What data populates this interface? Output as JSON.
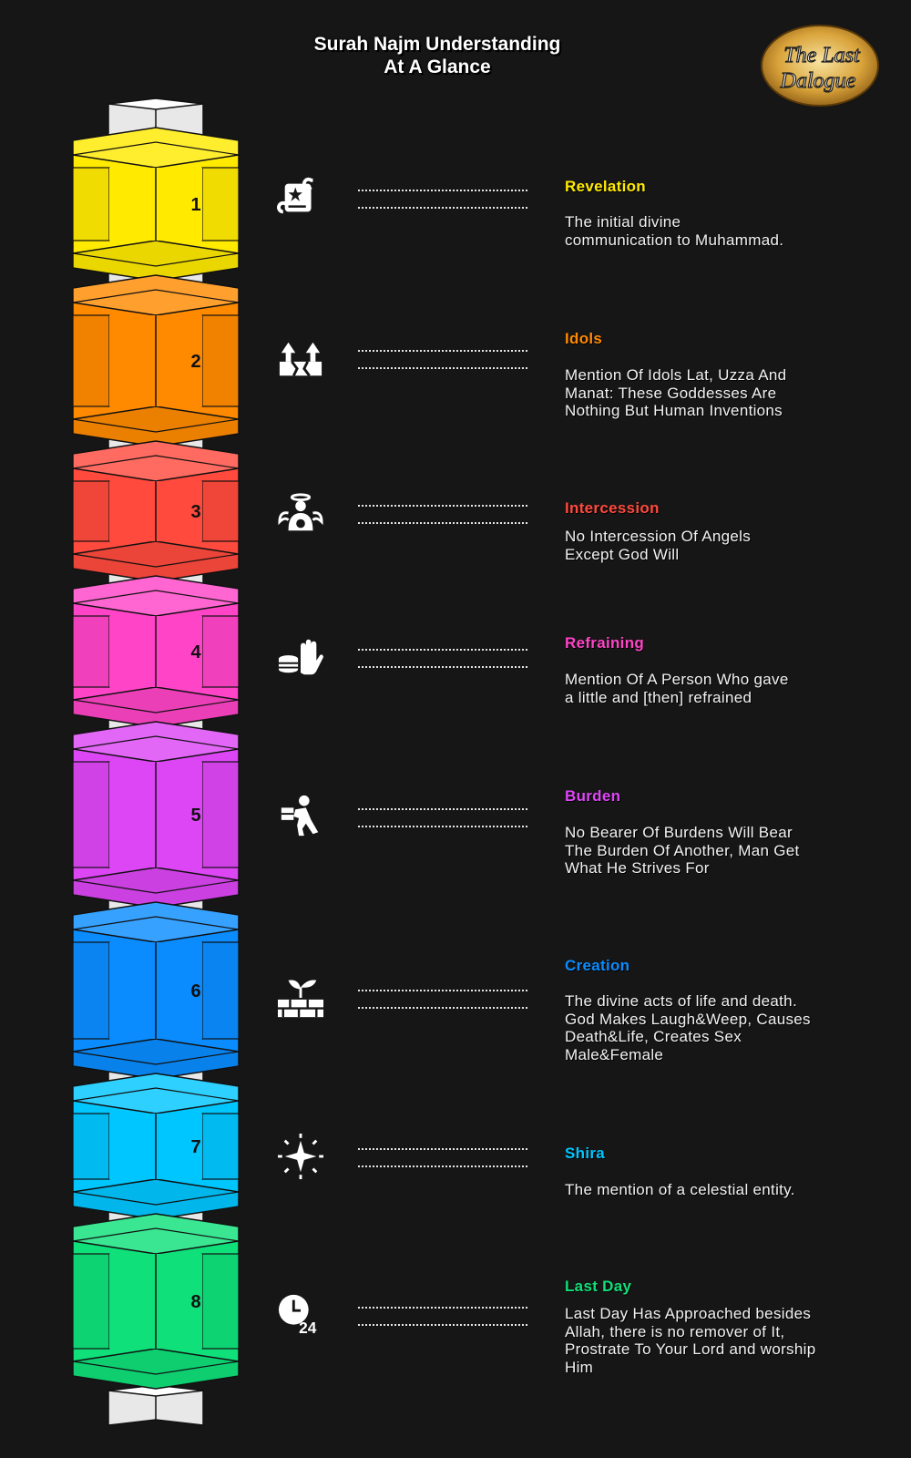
{
  "title": {
    "line1": "Surah Najm Understanding",
    "line2": "At A Glance"
  },
  "logo": {
    "line1": "The Last",
    "line2": "Dalogue"
  },
  "items": [
    {
      "num": "1",
      "color": "#ffea00",
      "title": "Revelation",
      "icon": "scroll-icon",
      "desc": [
        "The initial divine",
        "communication to Muhammad."
      ]
    },
    {
      "num": "2",
      "color": "#ff8a00",
      "title": "Idols",
      "icon": "cracked-ground-arrows-icon",
      "desc": [
        "Mention Of Idols Lat, Uzza And",
        "Manat: These Goddesses Are",
        "Nothing But Human Inventions"
      ]
    },
    {
      "num": "3",
      "color": "#ff4a3d",
      "title": "Intercession",
      "icon": "angel-icon",
      "desc": [
        "No Intercession Of Angels",
        "Except God Will"
      ]
    },
    {
      "num": "4",
      "color": "#ff44c7",
      "title": "Refraining",
      "icon": "hand-coins-icon",
      "desc": [
        "Mention Of A Person Who gave",
        "a little and [then] refrained"
      ]
    },
    {
      "num": "5",
      "color": "#dd46f5",
      "title": "Burden",
      "icon": "person-carrying-box-icon",
      "desc": [
        "No Bearer Of Burdens Will Bear",
        "The Burden Of Another, Man Get",
        "What He Strives For"
      ]
    },
    {
      "num": "6",
      "color": "#0a8cff",
      "title": "Creation",
      "icon": "sprout-on-bricks-icon",
      "desc": [
        "The divine acts of life and death.",
        "God Makes Laugh&Weep, Causes",
        "Death&Life, Creates Sex",
        "Male&Female"
      ]
    },
    {
      "num": "7",
      "color": "#00c6ff",
      "title": "Shira",
      "icon": "sparkle-star-icon",
      "desc": [
        "The mention of a celestial entity."
      ]
    },
    {
      "num": "8",
      "color": "#0fe07a",
      "title": "Last Day",
      "icon": "clock-24-icon",
      "desc": [
        "Last Day Has Approached besides",
        "Allah, there is no remover of It,",
        "Prostrate To Your Lord and worship",
        "Him"
      ]
    }
  ],
  "icon_24_text": "24"
}
